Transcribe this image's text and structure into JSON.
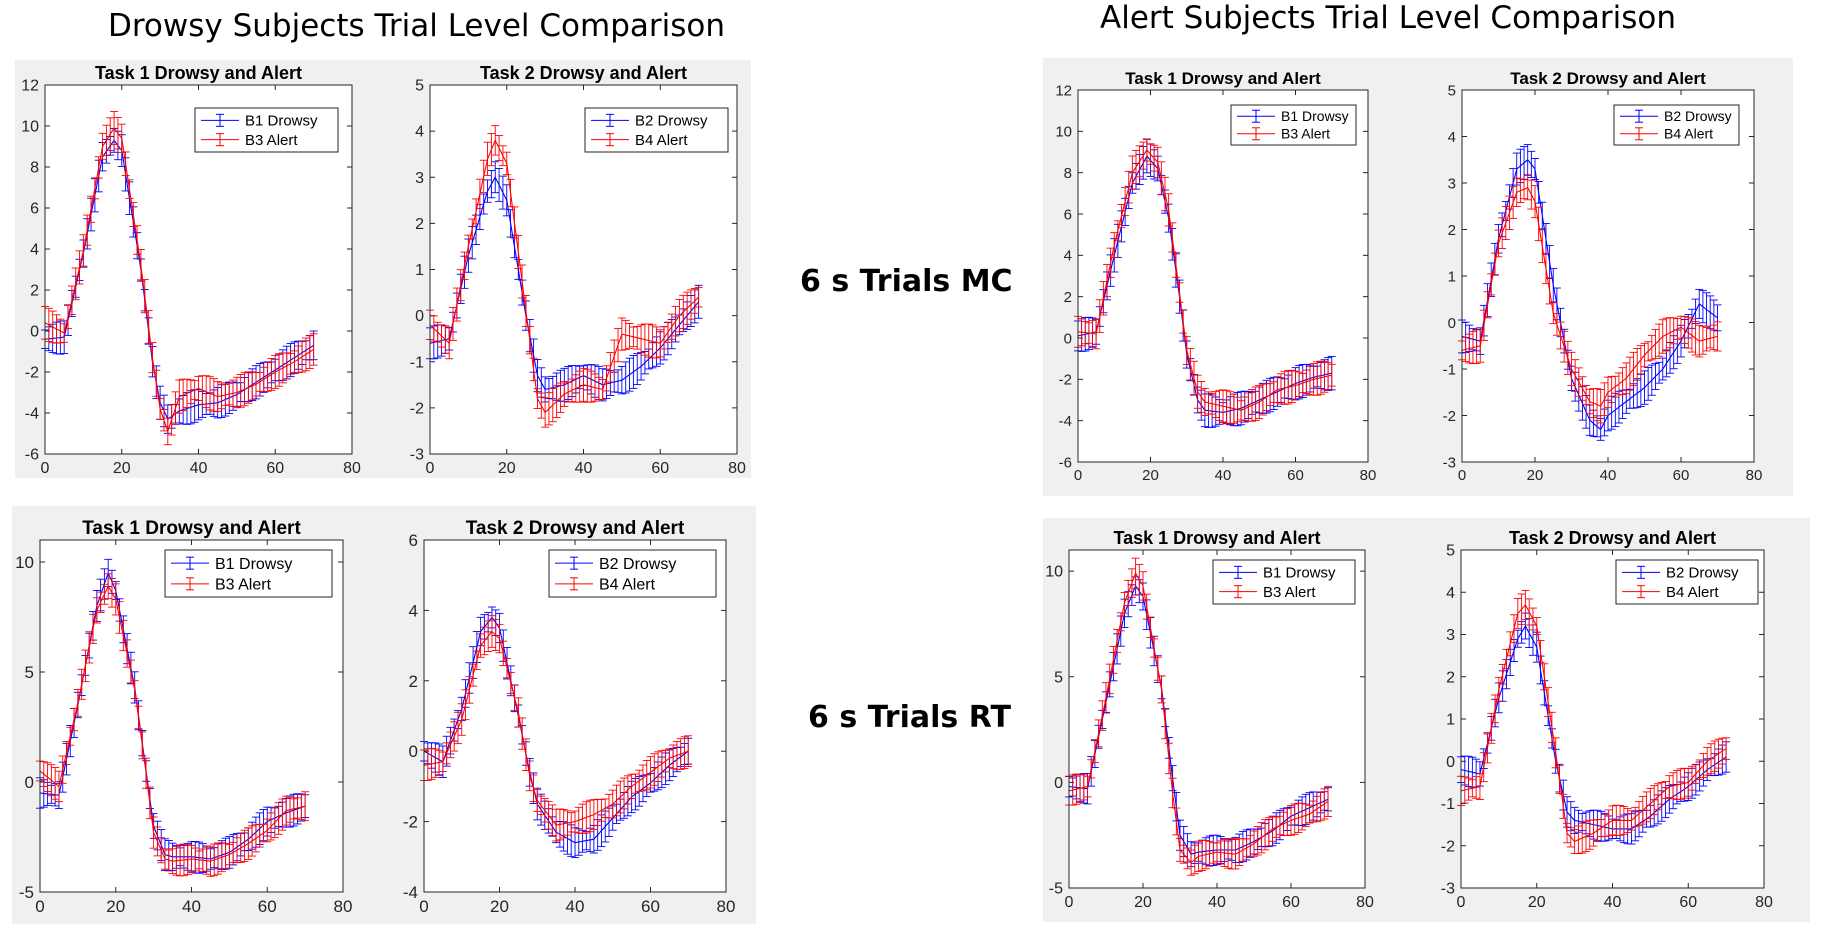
{
  "headings": {
    "left": "Drowsy Subjects Trial Level Comparison",
    "right": "Alert Subjects Trial Level Comparison",
    "row1": "6 s Trials MC",
    "row2": "6 s Trials RT"
  },
  "colors": {
    "series1": "#0000ff",
    "series2": "#ff0000",
    "panel_bg": "#f0f0f0"
  },
  "chart_data": [
    {
      "type": "line",
      "group": "Drowsy",
      "row": "6 s Trials MC",
      "title": "Task 1 Drowsy and Alert",
      "xlim": [
        0,
        80
      ],
      "ylim": [
        -6,
        12
      ],
      "xticks": [
        0,
        20,
        40,
        60,
        80
      ],
      "yticks": [
        -6,
        -4,
        -2,
        0,
        2,
        4,
        6,
        8,
        10,
        12
      ],
      "legend_position": "top-right",
      "error_bars": true,
      "x": [
        0,
        5,
        10,
        15,
        18,
        20,
        25,
        28,
        30,
        32,
        35,
        40,
        45,
        50,
        55,
        60,
        65,
        70
      ],
      "series": [
        {
          "name": "B1 Drowsy",
          "values": [
            -0.4,
            -0.3,
            3.8,
            8.5,
            9.3,
            8.8,
            3.0,
            -1.5,
            -3.5,
            -4.3,
            -3.9,
            -3.6,
            -3.5,
            -3.1,
            -2.5,
            -1.9,
            -1.3,
            -0.7
          ]
        },
        {
          "name": "B3 Alert",
          "values": [
            0.4,
            -0.1,
            3.9,
            9.0,
            9.9,
            9.4,
            3.2,
            -1.3,
            -3.8,
            -4.9,
            -3.2,
            -2.8,
            -3.2,
            -3.0,
            -2.6,
            -2.0,
            -1.5,
            -0.9
          ]
        }
      ]
    },
    {
      "type": "line",
      "group": "Drowsy",
      "row": "6 s Trials MC",
      "title": "Task 2 Drowsy and Alert",
      "xlim": [
        0,
        80
      ],
      "ylim": [
        -3,
        5
      ],
      "xticks": [
        0,
        20,
        40,
        60,
        80
      ],
      "yticks": [
        -3,
        -2,
        -1,
        0,
        1,
        2,
        3,
        4,
        5
      ],
      "legend_position": "top-right",
      "error_bars": true,
      "x": [
        0,
        5,
        10,
        15,
        17,
        20,
        25,
        28,
        30,
        35,
        40,
        45,
        50,
        55,
        60,
        65,
        70
      ],
      "series": [
        {
          "name": "B2 Drowsy",
          "values": [
            -0.6,
            -0.5,
            1.3,
            2.7,
            3.0,
            2.5,
            0.0,
            -1.3,
            -1.6,
            -1.5,
            -1.3,
            -1.5,
            -1.4,
            -1.1,
            -0.7,
            -0.2,
            0.3
          ]
        },
        {
          "name": "B4 Alert",
          "values": [
            -0.2,
            -0.6,
            1.5,
            3.4,
            3.8,
            3.3,
            0.1,
            -1.8,
            -2.1,
            -1.7,
            -1.5,
            -1.6,
            -0.4,
            -0.5,
            -0.6,
            0.0,
            0.4
          ]
        }
      ]
    },
    {
      "type": "line",
      "group": "Drowsy",
      "row": "6 s Trials RT",
      "title": "Task 1 Drowsy and Alert",
      "xlim": [
        0,
        80
      ],
      "ylim": [
        -5,
        11
      ],
      "xticks": [
        0,
        20,
        40,
        60,
        80
      ],
      "yticks": [
        -5,
        0,
        5,
        10
      ],
      "legend_position": "top-right",
      "error_bars": true,
      "x": [
        0,
        5,
        10,
        15,
        18,
        20,
        25,
        28,
        30,
        33,
        35,
        40,
        45,
        50,
        55,
        60,
        65,
        70
      ],
      "series": [
        {
          "name": "B1 Drowsy",
          "values": [
            -0.5,
            -0.6,
            3.5,
            8.0,
            9.5,
            8.7,
            4.3,
            0.5,
            -2.0,
            -3.3,
            -3.4,
            -3.4,
            -3.5,
            -3.2,
            -2.6,
            -1.8,
            -1.4,
            -1.1
          ]
        },
        {
          "name": "B3 Alert",
          "values": [
            0.5,
            -0.2,
            3.6,
            7.8,
            8.9,
            8.3,
            4.2,
            0.4,
            -2.3,
            -3.5,
            -3.6,
            -3.5,
            -3.6,
            -3.3,
            -2.8,
            -2.2,
            -1.3,
            -1.1
          ]
        }
      ]
    },
    {
      "type": "line",
      "group": "Drowsy",
      "row": "6 s Trials RT",
      "title": "Task 2 Drowsy and Alert",
      "xlim": [
        0,
        80
      ],
      "ylim": [
        -4,
        6
      ],
      "xticks": [
        0,
        20,
        40,
        60,
        80
      ],
      "yticks": [
        -4,
        -2,
        0,
        2,
        4,
        6
      ],
      "legend_position": "top-right",
      "error_bars": true,
      "x": [
        0,
        5,
        10,
        15,
        18,
        20,
        25,
        28,
        30,
        35,
        40,
        45,
        50,
        55,
        60,
        65,
        70
      ],
      "series": [
        {
          "name": "B2 Drowsy",
          "values": [
            0.0,
            -0.3,
            1.2,
            3.4,
            3.8,
            3.5,
            1.0,
            -0.6,
            -1.5,
            -2.3,
            -2.6,
            -2.5,
            -1.9,
            -1.3,
            -0.9,
            -0.4,
            0.0
          ]
        },
        {
          "name": "B4 Alert",
          "values": [
            -0.4,
            -0.3,
            0.9,
            3.0,
            3.4,
            3.2,
            1.1,
            -0.7,
            -1.4,
            -2.1,
            -2.0,
            -1.8,
            -1.5,
            -1.0,
            -0.6,
            -0.2,
            0.0
          ]
        }
      ]
    },
    {
      "type": "line",
      "group": "Alert",
      "row": "6 s Trials MC",
      "title": "Task 1 Drowsy and Alert",
      "xlim": [
        0,
        80
      ],
      "ylim": [
        -6,
        12
      ],
      "xticks": [
        0,
        20,
        40,
        60,
        80
      ],
      "yticks": [
        -6,
        -4,
        -2,
        0,
        2,
        4,
        6,
        8,
        10,
        12
      ],
      "legend_position": "top-right",
      "error_bars": true,
      "x": [
        0,
        5,
        10,
        15,
        19,
        22,
        25,
        28,
        30,
        33,
        35,
        40,
        45,
        50,
        55,
        60,
        65,
        70
      ],
      "series": [
        {
          "name": "B1 Drowsy",
          "values": [
            0.1,
            0.3,
            4.0,
            7.5,
            8.8,
            8.2,
            5.8,
            2.0,
            -0.8,
            -3.0,
            -3.5,
            -3.6,
            -3.4,
            -3.0,
            -2.6,
            -2.2,
            -1.9,
            -1.7
          ]
        },
        {
          "name": "B3 Alert",
          "values": [
            0.3,
            0.2,
            4.5,
            8.0,
            9.1,
            8.5,
            6.2,
            2.2,
            -0.6,
            -2.6,
            -3.1,
            -3.3,
            -3.5,
            -3.1,
            -2.5,
            -2.3,
            -2.0,
            -1.8
          ]
        }
      ]
    },
    {
      "type": "line",
      "group": "Alert",
      "row": "6 s Trials MC",
      "title": "Task 2 Drowsy and Alert",
      "xlim": [
        0,
        80
      ],
      "ylim": [
        -3,
        5
      ],
      "xticks": [
        0,
        20,
        40,
        60,
        80
      ],
      "yticks": [
        -3,
        -2,
        -1,
        0,
        1,
        2,
        3,
        4,
        5
      ],
      "legend_position": "top-right",
      "error_bars": true,
      "x": [
        0,
        5,
        10,
        15,
        18,
        20,
        25,
        30,
        35,
        38,
        40,
        45,
        50,
        55,
        60,
        65,
        70
      ],
      "series": [
        {
          "name": "B2 Drowsy",
          "values": [
            -0.3,
            -0.4,
            1.8,
            3.3,
            3.5,
            3.3,
            0.8,
            -1.2,
            -2.1,
            -2.3,
            -2.0,
            -1.7,
            -1.4,
            -1.0,
            -0.4,
            0.4,
            0.1
          ]
        },
        {
          "name": "B4 Alert",
          "values": [
            -0.6,
            -0.5,
            1.7,
            2.8,
            2.9,
            2.6,
            0.2,
            -1.0,
            -1.7,
            -1.8,
            -1.5,
            -1.2,
            -0.7,
            -0.3,
            -0.1,
            -0.4,
            -0.3
          ]
        }
      ]
    },
    {
      "type": "line",
      "group": "Alert",
      "row": "6 s Trials RT",
      "title": "Task 1 Drowsy and Alert",
      "xlim": [
        0,
        80
      ],
      "ylim": [
        -5,
        11
      ],
      "xticks": [
        0,
        20,
        40,
        60,
        80
      ],
      "yticks": [
        -5,
        0,
        5,
        10
      ],
      "legend_position": "top-right",
      "error_bars": true,
      "x": [
        0,
        5,
        10,
        15,
        18,
        20,
        25,
        28,
        30,
        33,
        35,
        40,
        45,
        50,
        55,
        60,
        65,
        70
      ],
      "series": [
        {
          "name": "B1 Drowsy",
          "values": [
            -0.2,
            -0.3,
            3.8,
            8.0,
            9.3,
            8.8,
            4.5,
            0.2,
            -2.5,
            -3.4,
            -3.3,
            -3.2,
            -3.2,
            -2.8,
            -2.3,
            -1.6,
            -1.2,
            -0.8
          ]
        },
        {
          "name": "B3 Alert",
          "values": [
            -0.4,
            -0.2,
            4.0,
            8.5,
            9.9,
            9.3,
            4.4,
            -0.5,
            -3.2,
            -3.8,
            -3.5,
            -3.3,
            -3.4,
            -2.9,
            -2.2,
            -1.8,
            -1.5,
            -0.9
          ]
        }
      ]
    },
    {
      "type": "line",
      "group": "Alert",
      "row": "6 s Trials RT",
      "title": "Task 2 Drowsy and Alert",
      "xlim": [
        0,
        80
      ],
      "ylim": [
        -3,
        5
      ],
      "xticks": [
        0,
        20,
        40,
        60,
        80
      ],
      "yticks": [
        -3,
        -2,
        -1,
        0,
        1,
        2,
        3,
        4,
        5
      ],
      "legend_position": "top-right",
      "error_bars": true,
      "x": [
        0,
        5,
        10,
        15,
        17,
        20,
        25,
        28,
        30,
        35,
        40,
        45,
        50,
        55,
        60,
        65,
        70
      ],
      "series": [
        {
          "name": "B2 Drowsy",
          "values": [
            -0.2,
            -0.3,
            1.5,
            2.9,
            3.2,
            2.7,
            0.0,
            -1.2,
            -1.4,
            -1.5,
            -1.6,
            -1.6,
            -1.3,
            -0.9,
            -0.6,
            -0.2,
            0.1
          ]
        },
        {
          "name": "B4 Alert",
          "values": [
            -0.7,
            -0.6,
            1.7,
            3.5,
            3.7,
            3.2,
            0.2,
            -1.7,
            -1.9,
            -1.7,
            -1.4,
            -1.4,
            -1.0,
            -0.6,
            -0.5,
            0.0,
            0.3
          ]
        }
      ]
    }
  ]
}
